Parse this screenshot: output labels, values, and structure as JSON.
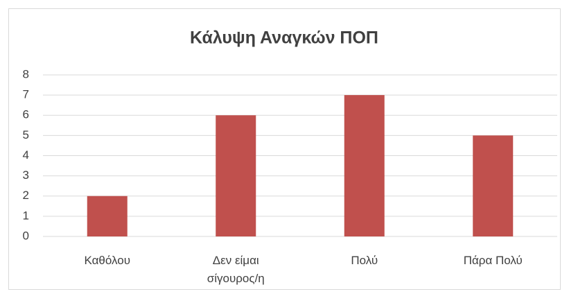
{
  "chart_data": {
    "type": "bar",
    "title": "Κάλυψη Αναγκών ΠΟΠ",
    "categories": [
      "Καθόλου",
      "Δεν είμαι σίγουρος/η",
      "Πολύ",
      "Πάρα Πολύ"
    ],
    "values": [
      2,
      6,
      7,
      5
    ],
    "color": "#c0504d",
    "ylim": [
      0,
      8
    ],
    "yticks": [
      0,
      1,
      2,
      3,
      4,
      5,
      6,
      7,
      8
    ],
    "grid": true
  }
}
